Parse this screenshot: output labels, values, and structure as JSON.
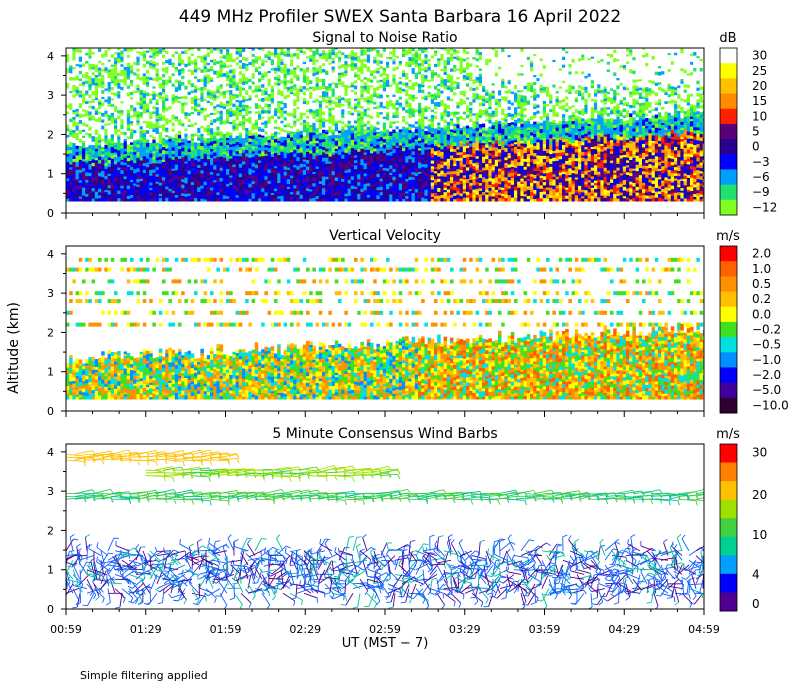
{
  "figure": {
    "title": "449 MHz Profiler SWEX Santa Barbara 16 April 2022",
    "y_axis_label": "Altitude (km)",
    "x_axis_label": "UT  (MST − 7)",
    "footnote": "Simple filtering applied"
  },
  "chart_data": [
    {
      "type": "heatmap",
      "title": "Signal to Noise Ratio",
      "colorbar_unit": "dB",
      "colorbar_ticks": [
        "30",
        "25",
        "20",
        "15",
        "10",
        "5",
        "0",
        "−3",
        "−6",
        "−9",
        "−12"
      ],
      "colorbar_colors": [
        "#ffffff",
        "#ffff00",
        "#ffc000",
        "#ff8c00",
        "#ff2000",
        "#5a0078",
        "#2a0090",
        "#0000ff",
        "#00a0ff",
        "#20e070",
        "#80ff20"
      ],
      "xlabel": "UT (MST - 7)",
      "ylabel": "Altitude (km)",
      "ylim": [
        0,
        4.2
      ],
      "y_ticks": [
        "0",
        "1",
        "2",
        "3",
        "4"
      ],
      "x_ticks": [
        "00:59",
        "01:29",
        "01:59",
        "02:29",
        "02:59",
        "03:29",
        "03:59",
        "04:29",
        "04:59"
      ],
      "bands": [
        {
          "bottom_km": 0.3,
          "top_km": 1.0,
          "range": "-3 to 10 dB",
          "note": "strongest (10+ dB) after 02:59"
        },
        {
          "bottom_km": 1.0,
          "top_km": 2.0,
          "range": "-9 to 0 dB"
        },
        {
          "bottom_km": 2.0,
          "top_km": 4.2,
          "range": "-12 to -9 dB, patchy"
        }
      ]
    },
    {
      "type": "heatmap",
      "title": "Vertical Velocity",
      "colorbar_unit": "m/s",
      "colorbar_ticks": [
        "2.0",
        "1.0",
        "0.5",
        "0.2",
        "0.0",
        "−0.2",
        "−0.5",
        "−1.0",
        "−2.0",
        "−5.0",
        "−10.0"
      ],
      "colorbar_colors": [
        "#ff0000",
        "#ff6000",
        "#ff9000",
        "#ffc000",
        "#ffff00",
        "#40e020",
        "#00e0e0",
        "#0090ff",
        "#0000ff",
        "#4000a0",
        "#300030"
      ],
      "xlabel": "UT (MST - 7)",
      "ylabel": "Altitude (km)",
      "ylim": [
        0,
        4.2
      ],
      "y_ticks": [
        "0",
        "1",
        "2",
        "3",
        "4"
      ],
      "x_ticks": [
        "00:59",
        "01:29",
        "01:59",
        "02:29",
        "02:59",
        "03:29",
        "03:59",
        "04:29",
        "04:59"
      ]
    },
    {
      "type": "scatter",
      "title": "5 Minute Consensus Wind Barbs",
      "colorbar_unit": "m/s",
      "colorbar_ticks": [
        "30",
        "20",
        "10",
        "4",
        "0"
      ],
      "colorbar_colors": [
        "#ff0000",
        "#ff8000",
        "#ffc000",
        "#a0e000",
        "#40d040",
        "#00d090",
        "#00a0ff",
        "#0000ff",
        "#500090"
      ],
      "xlabel": "UT (MST - 7)",
      "ylabel": "Altitude (km)",
      "ylim": [
        0,
        4.2
      ],
      "y_ticks": [
        "0",
        "1",
        "2",
        "3",
        "4"
      ],
      "x_ticks": [
        "00:59",
        "01:29",
        "01:59",
        "02:29",
        "02:59",
        "03:29",
        "03:59",
        "04:29",
        "04:59"
      ],
      "barb_layers": [
        {
          "altitude_km": 3.9,
          "speed_ms": 18,
          "span": "00:59-01:59"
        },
        {
          "altitude_km": 3.5,
          "speed_ms": 12,
          "span": "01:29-02:59"
        },
        {
          "altitude_km": 2.9,
          "speed_ms": 9,
          "span": "00:59-04:59"
        },
        {
          "altitude_km": 1.0,
          "speed_ms": 4,
          "span": "00:59-04:59"
        }
      ]
    }
  ]
}
